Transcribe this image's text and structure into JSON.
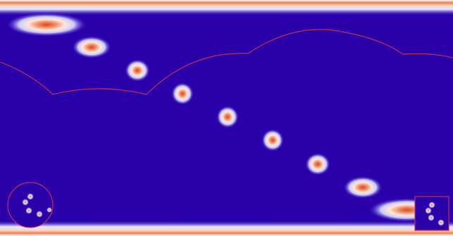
{
  "scene": {
    "colors": {
      "background": "#2a00a8",
      "blob_core": "#e2552d",
      "blob_mid": "#ffd0b8",
      "blob_halo": "#ffffff",
      "edge_band": "#f06a3d",
      "boundary_line": "#c0305a",
      "minimap_border": "#c0305a"
    },
    "field": {
      "type": "gaussian-blob-chain",
      "blob_count": 10
    }
  }
}
